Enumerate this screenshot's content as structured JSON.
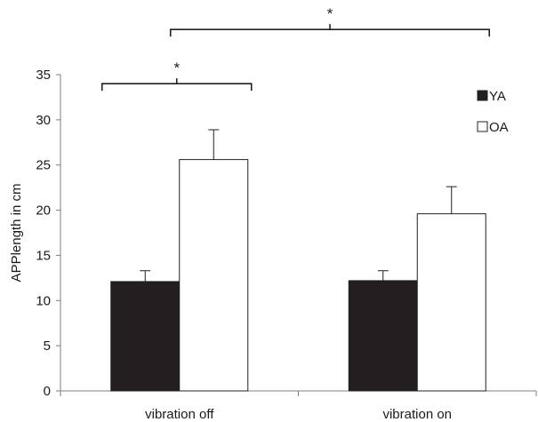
{
  "chart_data": {
    "type": "bar",
    "title": "",
    "xlabel": "",
    "ylabel": "APPlength in cm",
    "ylim": [
      0,
      35
    ],
    "yticks": [
      0,
      5,
      10,
      15,
      20,
      25,
      30,
      35
    ],
    "grid": false,
    "legend_position": "top-right",
    "categories": [
      "vibration off",
      "vibration on"
    ],
    "series": [
      {
        "name": "YA",
        "color": "#231f20",
        "values": [
          12.1,
          12.2
        ],
        "errors": [
          1.2,
          1.1
        ]
      },
      {
        "name": "OA",
        "color": "#ffffff",
        "values": [
          25.6,
          19.6
        ],
        "errors": [
          3.3,
          3.0
        ]
      }
    ],
    "significance": [
      {
        "label": "*",
        "from": {
          "category": 0,
          "series": 0
        },
        "to": {
          "category": 0,
          "series": 1
        },
        "level": 34
      },
      {
        "label": "*",
        "from": {
          "category": 0,
          "series": 1
        },
        "to": {
          "category": 1,
          "series": 1
        },
        "level": 40
      }
    ]
  }
}
